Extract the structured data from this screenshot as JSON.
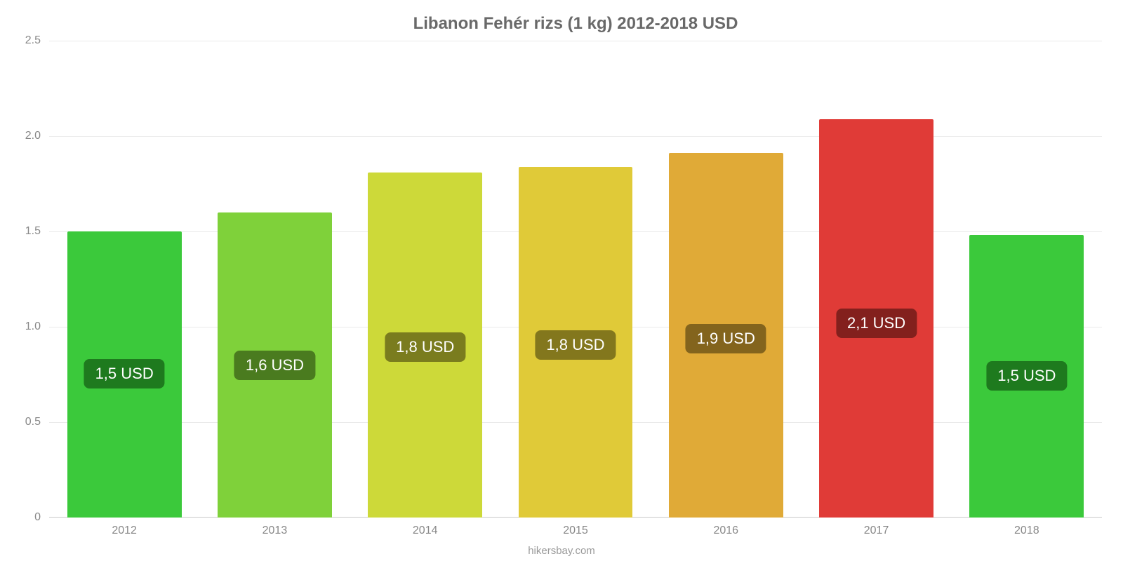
{
  "chart": {
    "type": "bar",
    "title": "Libanon Fehér rizs (1 kg) 2012-2018 USD",
    "title_color": "#696969",
    "title_fontsize": 24,
    "background_color": "#ffffff",
    "grid_color": "#eaeaea",
    "axis_color": "#c8c8c8",
    "tick_label_color": "#888888",
    "tick_fontsize": 16,
    "ylim_min": 0,
    "ylim_max": 2.5,
    "yticks": [
      {
        "value": 0,
        "label": "0"
      },
      {
        "value": 0.5,
        "label": "0.5"
      },
      {
        "value": 1.0,
        "label": "1.0"
      },
      {
        "value": 1.5,
        "label": "1.5"
      },
      {
        "value": 2.0,
        "label": "2.0"
      },
      {
        "value": 2.5,
        "label": "2.5"
      }
    ],
    "bar_width_ratio": 0.76,
    "badge_fontsize": 22,
    "badge_text_color": "#ffffff",
    "bars": [
      {
        "x": "2012",
        "value": 1.5,
        "label": "1,5 USD",
        "bar_color": "#3bc93b",
        "badge_bg": "#1e7a1e"
      },
      {
        "x": "2013",
        "value": 1.6,
        "label": "1,6 USD",
        "bar_color": "#7fd13a",
        "badge_bg": "#4a7b1f"
      },
      {
        "x": "2014",
        "value": 1.81,
        "label": "1,8 USD",
        "bar_color": "#cdd939",
        "badge_bg": "#7a7c1e"
      },
      {
        "x": "2015",
        "value": 1.84,
        "label": "1,8 USD",
        "bar_color": "#e0ca38",
        "badge_bg": "#83771d"
      },
      {
        "x": "2016",
        "value": 1.91,
        "label": "1,9 USD",
        "bar_color": "#e0aa37",
        "badge_bg": "#83641d"
      },
      {
        "x": "2017",
        "value": 2.09,
        "label": "2,1 USD",
        "bar_color": "#e03b37",
        "badge_bg": "#83201d"
      },
      {
        "x": "2018",
        "value": 1.48,
        "label": "1,5 USD",
        "bar_color": "#3bc93b",
        "badge_bg": "#1e7a1e"
      }
    ],
    "footer": "hikersbay.com",
    "footer_color": "#9a9a9a",
    "footer_fontsize": 15
  }
}
